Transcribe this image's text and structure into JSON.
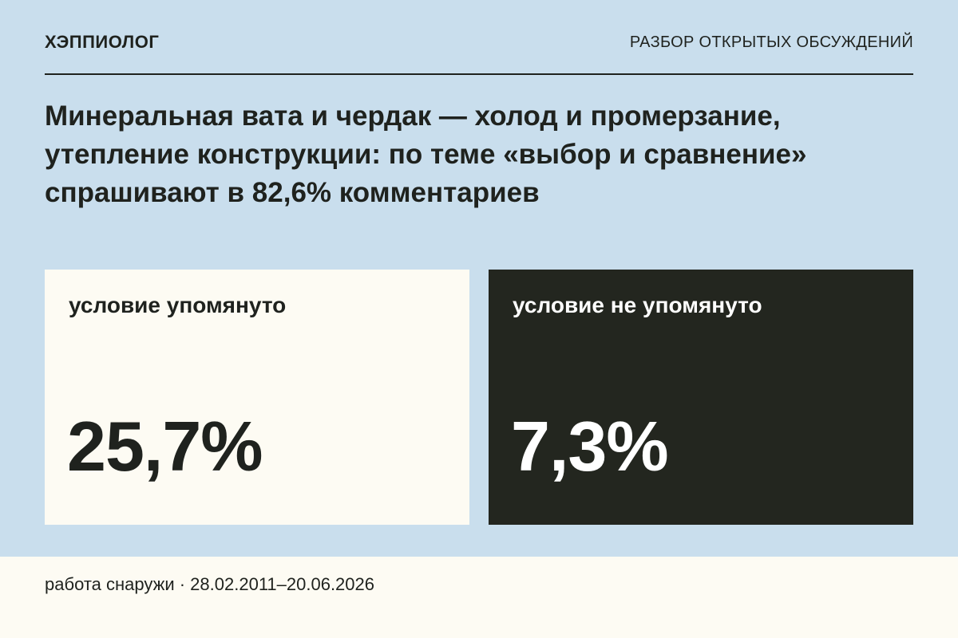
{
  "header": {
    "brand": "ХЭППИОЛОГ",
    "section": "РАЗБОР ОТКРЫТЫХ ОБСУЖДЕНИЙ"
  },
  "headline": "Минеральная вата и чердак — холод и промерзание, утепление конструкции: по теме «выбор и сравнение» спрашивают в 82,6% комментариев",
  "cards": [
    {
      "label": "условие упомянуто",
      "value": "25,7%"
    },
    {
      "label": "условие не упомянуто",
      "value": "7,3%"
    }
  ],
  "footer": {
    "text": "работа снаружи · 28.02.2011–20.06.2026"
  },
  "colors": {
    "background": "#c9deed",
    "light_card": "#fdfbf3",
    "dark_card": "#23261f",
    "text": "#1f221e"
  }
}
